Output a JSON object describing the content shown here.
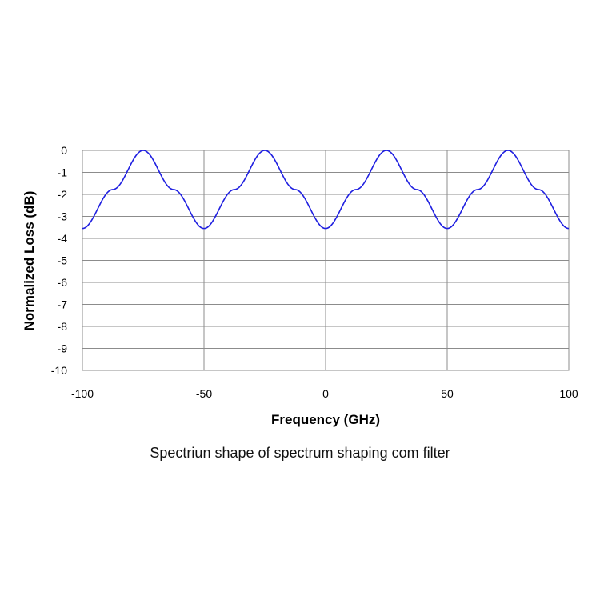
{
  "chart_data": {
    "type": "line",
    "title": "",
    "xlabel": "Frequency (GHz)",
    "ylabel": "Normalized Loss (dB)",
    "xlim": [
      -100,
      100
    ],
    "ylim": [
      -10,
      0
    ],
    "x_ticks": [
      "-100",
      "-50",
      "0",
      "50",
      "100"
    ],
    "y_ticks": [
      "0",
      "-1",
      "-2",
      "-3",
      "-4",
      "-5",
      "-6",
      "-7",
      "-8",
      "-9",
      "-10"
    ],
    "grid": true,
    "legend": "none",
    "line_color": "#1f1fe0",
    "series": [
      {
        "x": [
          -100,
          -87.5,
          -75,
          -62.5,
          -50,
          -37.5,
          -25,
          -12.5,
          0,
          12.5,
          25,
          37.5,
          50,
          62.5,
          75,
          87.5,
          100
        ],
        "values": [
          -3.55,
          -1.78,
          0,
          -1.78,
          -3.55,
          -1.78,
          0,
          -1.78,
          -3.55,
          -1.78,
          0,
          -1.78,
          -3.55,
          -1.78,
          0,
          -1.78,
          -3.55
        ]
      }
    ]
  },
  "caption": "Spectriun shape of spectrum shaping com filter"
}
